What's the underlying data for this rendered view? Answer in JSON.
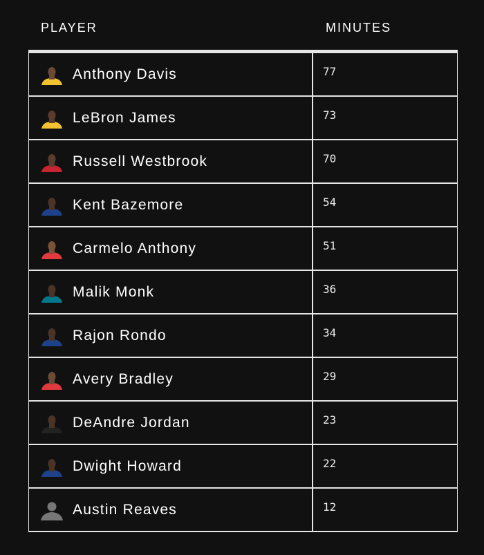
{
  "headers": {
    "player": "PLAYER",
    "minutes": "MINUTES"
  },
  "rows": [
    {
      "player": "Anthony Davis",
      "minutes": "77",
      "jersey": "#f2c230",
      "skin": "#6b4a36"
    },
    {
      "player": "LeBron James",
      "minutes": "73",
      "jersey": "#f2c230",
      "skin": "#5a3c2c"
    },
    {
      "player": "Russell Westbrook",
      "minutes": "70",
      "jersey": "#c8242f",
      "skin": "#5a3c2c"
    },
    {
      "player": "Kent Bazemore",
      "minutes": "54",
      "jersey": "#1d428a",
      "skin": "#4b3325"
    },
    {
      "player": "Carmelo Anthony",
      "minutes": "51",
      "jersey": "#e03a3e",
      "skin": "#7a5238"
    },
    {
      "player": "Malik Monk",
      "minutes": "36",
      "jersey": "#00788c",
      "skin": "#4b3325"
    },
    {
      "player": "Rajon Rondo",
      "minutes": "34",
      "jersey": "#1d428a",
      "skin": "#4b3325"
    },
    {
      "player": "Avery Bradley",
      "minutes": "29",
      "jersey": "#e03a3e",
      "skin": "#6b4a36"
    },
    {
      "player": "DeAndre Jordan",
      "minutes": "23",
      "jersey": "#222222",
      "skin": "#4b3325"
    },
    {
      "player": "Dwight Howard",
      "minutes": "22",
      "jersey": "#1d428a",
      "skin": "#4b3325"
    },
    {
      "player": "Austin Reaves",
      "minutes": "12",
      "jersey": "#777777",
      "skin": "#777777",
      "placeholder": true
    }
  ]
}
